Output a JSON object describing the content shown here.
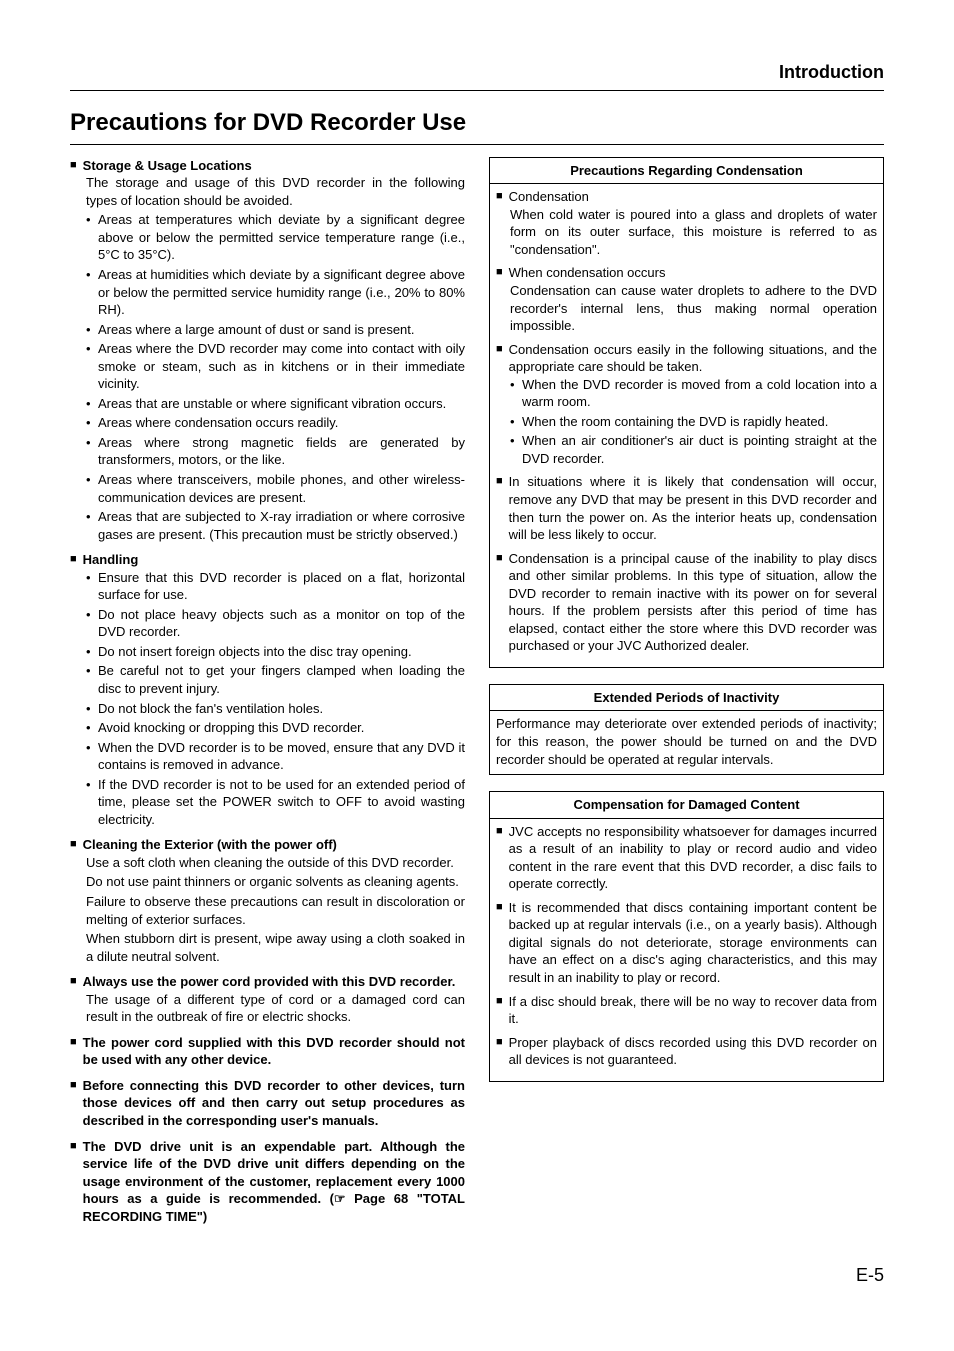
{
  "header": {
    "section": "Introduction"
  },
  "title": "Precautions for DVD Recorder Use",
  "page_number": "E-5",
  "left": {
    "storage": {
      "title": "Storage & Usage Locations",
      "intro": "The storage and usage of this DVD recorder in the following types of location should be avoided.",
      "items": [
        "Areas at temperatures which deviate by a significant degree above or below the permitted service temperature range (i.e., 5°C to 35°C).",
        "Areas at humidities which deviate by a significant degree above or below the permitted service humidity range (i.e., 20% to 80% RH).",
        "Areas where a large amount of dust or sand is present.",
        "Areas where the DVD recorder may come into contact with oily smoke or steam, such as in kitchens or in their immediate vicinity.",
        "Areas that are unstable or where significant vibration occurs.",
        "Areas where condensation occurs readily.",
        "Areas where strong magnetic fields are generated by transformers, motors, or the like.",
        "Areas where transceivers, mobile phones, and other wireless-communication devices are present.",
        "Areas that are subjected to X-ray irradiation or where corrosive gases are present. (This precaution must be strictly observed.)"
      ]
    },
    "handling": {
      "title": "Handling",
      "items": [
        "Ensure that this DVD recorder is placed on a flat, horizontal surface for use.",
        "Do not place heavy objects such as a monitor on top of the DVD recorder.",
        "Do not insert foreign objects into the disc tray opening.",
        "Be careful not to get your fingers clamped when loading the disc to prevent injury.",
        "Do not block the fan's ventilation holes.",
        "Avoid knocking or dropping this DVD recorder.",
        "When the DVD recorder is to be moved, ensure that any DVD it contains is removed in advance.",
        "If the DVD recorder is not to be used for an extended period of time, please set the POWER switch to OFF to avoid wasting electricity."
      ]
    },
    "cleaning": {
      "title": "Cleaning the Exterior (with the power off)",
      "paras": [
        "Use a soft cloth when cleaning the outside of this DVD recorder.",
        "Do not use paint thinners or organic solvents as cleaning agents.",
        "Failure to observe these precautions can result in discoloration or melting of exterior surfaces.",
        "When stubborn dirt is present, wipe away using a cloth soaked in a dilute neutral solvent."
      ]
    },
    "powercord": {
      "title": "Always use the power cord provided with this DVD recorder.",
      "para": "The usage of a different type of cord or a damaged cord can result in the outbreak of fire or electric shocks."
    },
    "supplied": {
      "title": "The power cord supplied with this DVD recorder should not be used with any other device."
    },
    "connecting": {
      "title": "Before connecting this DVD recorder to other devices, turn those devices off and then carry out setup procedures as described in the corresponding user's manuals."
    },
    "drive": {
      "title": "The DVD drive unit is an expendable part. Although the service life of the DVD drive unit differs depending on the usage environment of the customer, replacement every 1000 hours as a guide is recommended. (☞ Page 68 \"TOTAL RECORDING TIME\")"
    }
  },
  "right": {
    "condensation": {
      "box_title": "Precautions Regarding Condensation",
      "s1": {
        "title": "Condensation",
        "para": "When cold water is poured into a glass and droplets of water form on its outer surface, this moisture is referred to as \"condensation\"."
      },
      "s2": {
        "title": "When condensation occurs",
        "para": "Condensation can cause water droplets to adhere to the DVD recorder's internal lens, thus making normal operation impossible."
      },
      "s3": {
        "title": "Condensation occurs easily in the following situations, and the appropriate care should be taken.",
        "items": [
          "When the DVD recorder is moved from a cold location into a warm room.",
          "When the room containing the DVD is rapidly heated.",
          "When an air conditioner's air duct is pointing straight at the DVD recorder."
        ]
      },
      "s4": {
        "title": "In situations where it is likely that condensation will occur, remove any DVD that may be present in this DVD recorder and then turn the power on. As the interior heats up, condensation will be less likely to occur."
      },
      "s5": {
        "title": "Condensation is a principal cause of the inability to play discs and other similar problems. In this type of situation, allow the DVD recorder to remain inactive with its power on for several hours. If the problem persists after this period of time has elapsed, contact either the store where this DVD recorder was purchased or your JVC Authorized dealer."
      }
    },
    "inactivity": {
      "box_title": "Extended Periods of Inactivity",
      "para": "Performance may deteriorate over extended periods of inactivity; for this reason, the power should be turned on and the DVD recorder should be operated at regular intervals."
    },
    "compensation": {
      "box_title": "Compensation for Damaged Content",
      "items": [
        "JVC accepts no responsibility whatsoever for damages incurred as a result of an inability to play or record audio and video content in the rare event that this DVD recorder, a disc fails to operate correctly.",
        "It is recommended that discs containing important content be backed up at regular intervals (i.e., on a yearly basis). Although digital signals do not deteriorate, storage environments can have an effect on a disc's aging characteristics, and this may result in an inability to play or record.",
        "If a disc should break, there will be no way to recover data from it.",
        "Proper playback of discs recorded using this DVD recorder on all devices is not guaranteed."
      ]
    }
  }
}
